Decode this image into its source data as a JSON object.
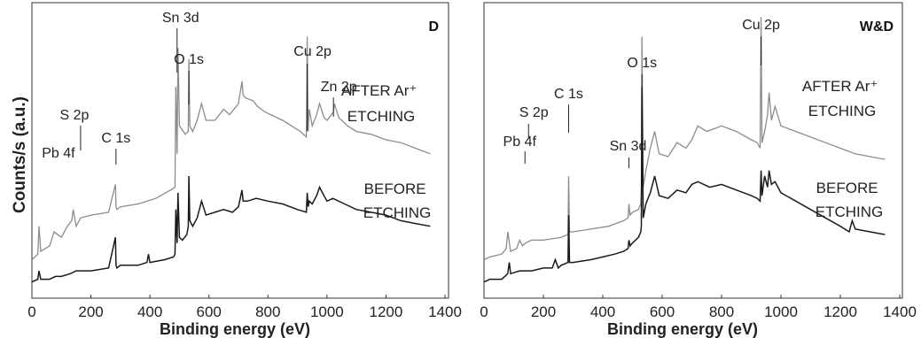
{
  "figure": {
    "ylabel": "Counts/s (a.u.)"
  },
  "chart_data": [
    {
      "panel_label": "D",
      "type": "line",
      "xlabel": "Binding energy (eV)",
      "ylabel": "Counts/s (a.u.)",
      "xlim": [
        0,
        1400
      ],
      "xticks": [
        0,
        200,
        400,
        600,
        800,
        1000,
        1200,
        1400
      ],
      "grid": false,
      "series": [
        {
          "label_lines": [
            "AFTER Ar⁺",
            "ETCHING"
          ],
          "color": "#8c8c8c",
          "x": [
            0,
            20,
            24,
            30,
            60,
            75,
            100,
            120,
            135,
            140,
            150,
            165,
            200,
            260,
            283,
            285,
            288,
            300,
            360,
            420,
            470,
            485,
            488,
            492,
            495,
            500,
            520,
            530,
            532,
            535,
            545,
            560,
            575,
            590,
            620,
            650,
            670,
            700,
            712,
            716,
            725,
            750,
            765,
            790,
            850,
            910,
            930,
            933,
            936,
            940,
            950,
            965,
            975,
            990,
            1000,
            1022,
            1025,
            1040,
            1070,
            1100,
            1150,
            1200,
            1250,
            1300,
            1350
          ],
          "y": [
            0.1,
            0.12,
            0.22,
            0.13,
            0.15,
            0.2,
            0.18,
            0.22,
            0.24,
            0.28,
            0.22,
            0.25,
            0.26,
            0.27,
            0.37,
            0.29,
            0.28,
            0.29,
            0.3,
            0.32,
            0.35,
            0.36,
            0.72,
            0.48,
            0.86,
            0.58,
            0.55,
            0.56,
            0.82,
            0.58,
            0.56,
            0.6,
            0.66,
            0.6,
            0.6,
            0.64,
            0.62,
            0.66,
            0.74,
            0.69,
            0.68,
            0.67,
            0.65,
            0.63,
            0.6,
            0.56,
            0.54,
            0.9,
            0.56,
            0.64,
            0.58,
            0.62,
            0.66,
            0.61,
            0.6,
            0.63,
            0.66,
            0.61,
            0.58,
            0.56,
            0.55,
            0.53,
            0.52,
            0.5,
            0.48
          ]
        },
        {
          "label_lines": [
            "BEFORE",
            "ETCHING"
          ],
          "color": "#1a1a1a",
          "x": [
            0,
            20,
            24,
            30,
            60,
            80,
            100,
            130,
            150,
            200,
            260,
            283,
            285,
            288,
            300,
            360,
            390,
            395,
            400,
            450,
            480,
            485,
            488,
            492,
            495,
            500,
            510,
            525,
            530,
            532,
            535,
            545,
            560,
            575,
            590,
            620,
            650,
            680,
            700,
            712,
            716,
            730,
            760,
            800,
            850,
            900,
            930,
            933,
            936,
            940,
            950,
            965,
            975,
            990,
            1000,
            1020,
            1060,
            1100,
            1150,
            1200,
            1250,
            1300,
            1350
          ],
          "y": [
            0.02,
            0.03,
            0.06,
            0.03,
            0.03,
            0.04,
            0.04,
            0.05,
            0.06,
            0.06,
            0.07,
            0.18,
            0.08,
            0.07,
            0.08,
            0.08,
            0.09,
            0.12,
            0.09,
            0.1,
            0.11,
            0.12,
            0.28,
            0.16,
            0.34,
            0.18,
            0.17,
            0.19,
            0.22,
            0.4,
            0.24,
            0.22,
            0.25,
            0.31,
            0.26,
            0.27,
            0.28,
            0.27,
            0.29,
            0.35,
            0.31,
            0.31,
            0.32,
            0.31,
            0.3,
            0.28,
            0.27,
            0.34,
            0.29,
            0.31,
            0.3,
            0.33,
            0.36,
            0.33,
            0.31,
            0.32,
            0.3,
            0.28,
            0.27,
            0.26,
            0.24,
            0.23,
            0.22
          ]
        }
      ],
      "peak_annotations": [
        {
          "text": "Sn 3d",
          "x": 492
        },
        {
          "text": "O 1s",
          "x": 532
        },
        {
          "text": "Cu 2p",
          "x": 933
        },
        {
          "text": "Zn 2p",
          "x": 1022
        },
        {
          "text": "C 1s",
          "x": 285
        },
        {
          "text": "S 2p",
          "x": 165
        },
        {
          "text": "Pb 4f",
          "x": 138
        }
      ]
    },
    {
      "panel_label": "W&D",
      "type": "line",
      "xlabel": "Binding energy (eV)",
      "ylabel": "Counts/s (a.u.)",
      "xlim": [
        0,
        1400
      ],
      "xticks": [
        0,
        200,
        400,
        600,
        800,
        1000,
        1200,
        1400
      ],
      "grid": false,
      "series": [
        {
          "label_lines": [
            "AFTER Ar⁺",
            "ETCHING"
          ],
          "color": "#8c8c8c",
          "x": [
            0,
            20,
            60,
            75,
            80,
            90,
            110,
            120,
            130,
            140,
            160,
            200,
            260,
            283,
            285,
            288,
            300,
            360,
            420,
            470,
            485,
            488,
            492,
            500,
            520,
            528,
            530,
            532,
            536,
            545,
            560,
            575,
            590,
            620,
            650,
            680,
            700,
            720,
            750,
            800,
            850,
            900,
            920,
            930,
            933,
            936,
            945,
            955,
            960,
            968,
            980,
            1000,
            1050,
            1100,
            1150,
            1200,
            1250,
            1300,
            1350
          ],
          "y": [
            0.1,
            0.11,
            0.12,
            0.14,
            0.2,
            0.13,
            0.14,
            0.17,
            0.15,
            0.16,
            0.17,
            0.17,
            0.18,
            0.19,
            0.4,
            0.2,
            0.2,
            0.21,
            0.22,
            0.24,
            0.25,
            0.3,
            0.26,
            0.27,
            0.28,
            0.3,
            0.35,
            0.9,
            0.36,
            0.42,
            0.5,
            0.56,
            0.48,
            0.47,
            0.52,
            0.5,
            0.53,
            0.58,
            0.56,
            0.58,
            0.56,
            0.53,
            0.52,
            0.5,
            0.97,
            0.52,
            0.56,
            0.62,
            0.7,
            0.6,
            0.65,
            0.58,
            0.56,
            0.54,
            0.52,
            0.5,
            0.48,
            0.47,
            0.46
          ]
        },
        {
          "label_lines": [
            "BEFORE",
            "ETCHING"
          ],
          "color": "#1a1a1a",
          "x": [
            0,
            20,
            60,
            80,
            85,
            90,
            120,
            160,
            200,
            230,
            240,
            250,
            260,
            283,
            285,
            288,
            300,
            360,
            400,
            440,
            470,
            485,
            488,
            492,
            500,
            520,
            528,
            530,
            532,
            536,
            545,
            560,
            575,
            590,
            620,
            650,
            680,
            700,
            720,
            760,
            800,
            850,
            900,
            920,
            930,
            933,
            936,
            945,
            955,
            960,
            968,
            980,
            1000,
            1050,
            1100,
            1150,
            1200,
            1230,
            1240,
            1250,
            1300,
            1350
          ],
          "y": [
            0.02,
            0.03,
            0.03,
            0.05,
            0.09,
            0.05,
            0.06,
            0.06,
            0.07,
            0.07,
            0.1,
            0.07,
            0.08,
            0.09,
            0.26,
            0.09,
            0.09,
            0.1,
            0.11,
            0.12,
            0.13,
            0.14,
            0.17,
            0.15,
            0.16,
            0.18,
            0.2,
            0.22,
            0.72,
            0.25,
            0.3,
            0.34,
            0.4,
            0.33,
            0.32,
            0.35,
            0.34,
            0.37,
            0.38,
            0.36,
            0.37,
            0.35,
            0.33,
            0.32,
            0.31,
            0.42,
            0.33,
            0.4,
            0.36,
            0.42,
            0.37,
            0.38,
            0.34,
            0.31,
            0.28,
            0.25,
            0.22,
            0.2,
            0.24,
            0.21,
            0.2,
            0.19
          ]
        }
      ],
      "peak_annotations": [
        {
          "text": "Cu 2p",
          "x": 933
        },
        {
          "text": "O 1s",
          "x": 532
        },
        {
          "text": "C 1s",
          "x": 285
        },
        {
          "text": "S 2p",
          "x": 150
        },
        {
          "text": "Pb 4f",
          "x": 138
        },
        {
          "text": "Sn 3d",
          "x": 488
        }
      ]
    }
  ]
}
